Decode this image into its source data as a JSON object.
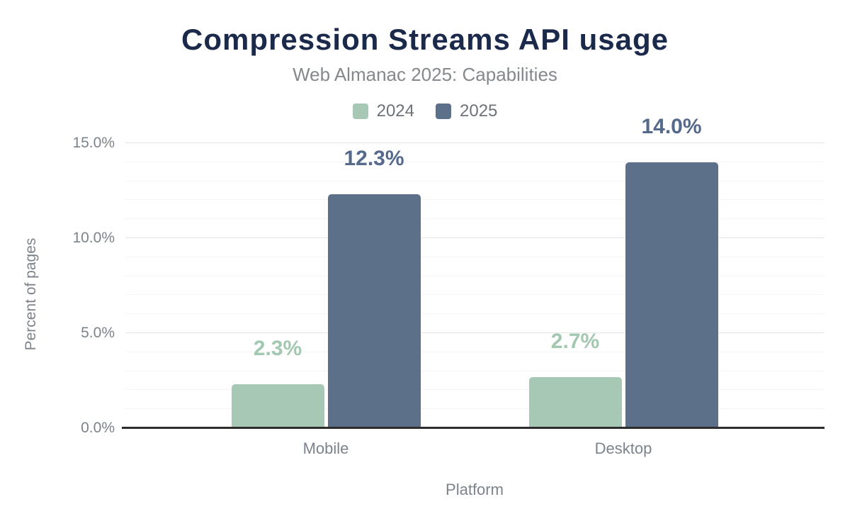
{
  "colors": {
    "title": "#1b2a4a",
    "subtitle-text": "#85888c",
    "legend-text": "#6e737a",
    "axis-text": "#7d838b",
    "grid-minor": "#f4f4f4",
    "grid-major": "#e4e4e4",
    "axis-line": "#2d2d2d"
  },
  "chart_data": {
    "type": "bar",
    "title": "Compression Streams API usage",
    "subtitle": "Web Almanac 2025: Capabilities",
    "xlabel": "Platform",
    "ylabel": "Percent of pages",
    "categories": [
      "Mobile",
      "Desktop"
    ],
    "series": [
      {
        "name": "2024",
        "values": [
          2.3,
          2.7
        ],
        "value_labels": [
          "2.3%",
          "2.7%"
        ],
        "color": "#a6c8b4",
        "label_color": "#a3c8b1"
      },
      {
        "name": "2025",
        "values": [
          12.3,
          14.0
        ],
        "value_labels": [
          "12.3%",
          "14.0%"
        ],
        "color": "#5d7089",
        "label_color": "#54698c"
      }
    ],
    "ylim": [
      0,
      15
    ],
    "yticks": [
      {
        "value": 0,
        "label": "0.0%"
      },
      {
        "value": 5,
        "label": "5.0%"
      },
      {
        "value": 10,
        "label": "10.0%"
      },
      {
        "value": 15,
        "label": "15.0%"
      }
    ],
    "grid": {
      "minor_every": 1,
      "major_every": 5
    },
    "legend_position": "top"
  }
}
